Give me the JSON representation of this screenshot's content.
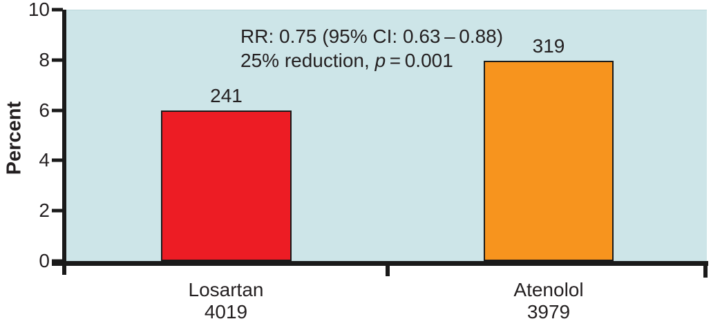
{
  "figure": {
    "background": "#ffffff",
    "plot_background": "#cde5e8",
    "axis_color": "#1a1a1a",
    "text_color": "#231f20"
  },
  "chart_data": {
    "type": "bar",
    "title": "",
    "xlabel": "",
    "ylabel": "Percent",
    "ylim": [
      0,
      10
    ],
    "yticks": [
      0,
      2,
      4,
      6,
      8,
      10
    ],
    "grid": false,
    "legend": false,
    "plot_background": "#cde5e8",
    "categories": [
      "Losartan",
      "Atenolol"
    ],
    "group_ns": [
      "4019",
      "3979"
    ],
    "values": [
      6,
      8
    ],
    "bar_labels": [
      "241",
      "319"
    ],
    "bar_colors": [
      "#ed1c24",
      "#f7941e"
    ],
    "annotation": {
      "line1": "RR: 0.75 (95% CI: 0.63 – 0.88)",
      "line2_prefix": "25% reduction, ",
      "line2_italic": "p",
      "line2_suffix": " = 0.001"
    }
  }
}
